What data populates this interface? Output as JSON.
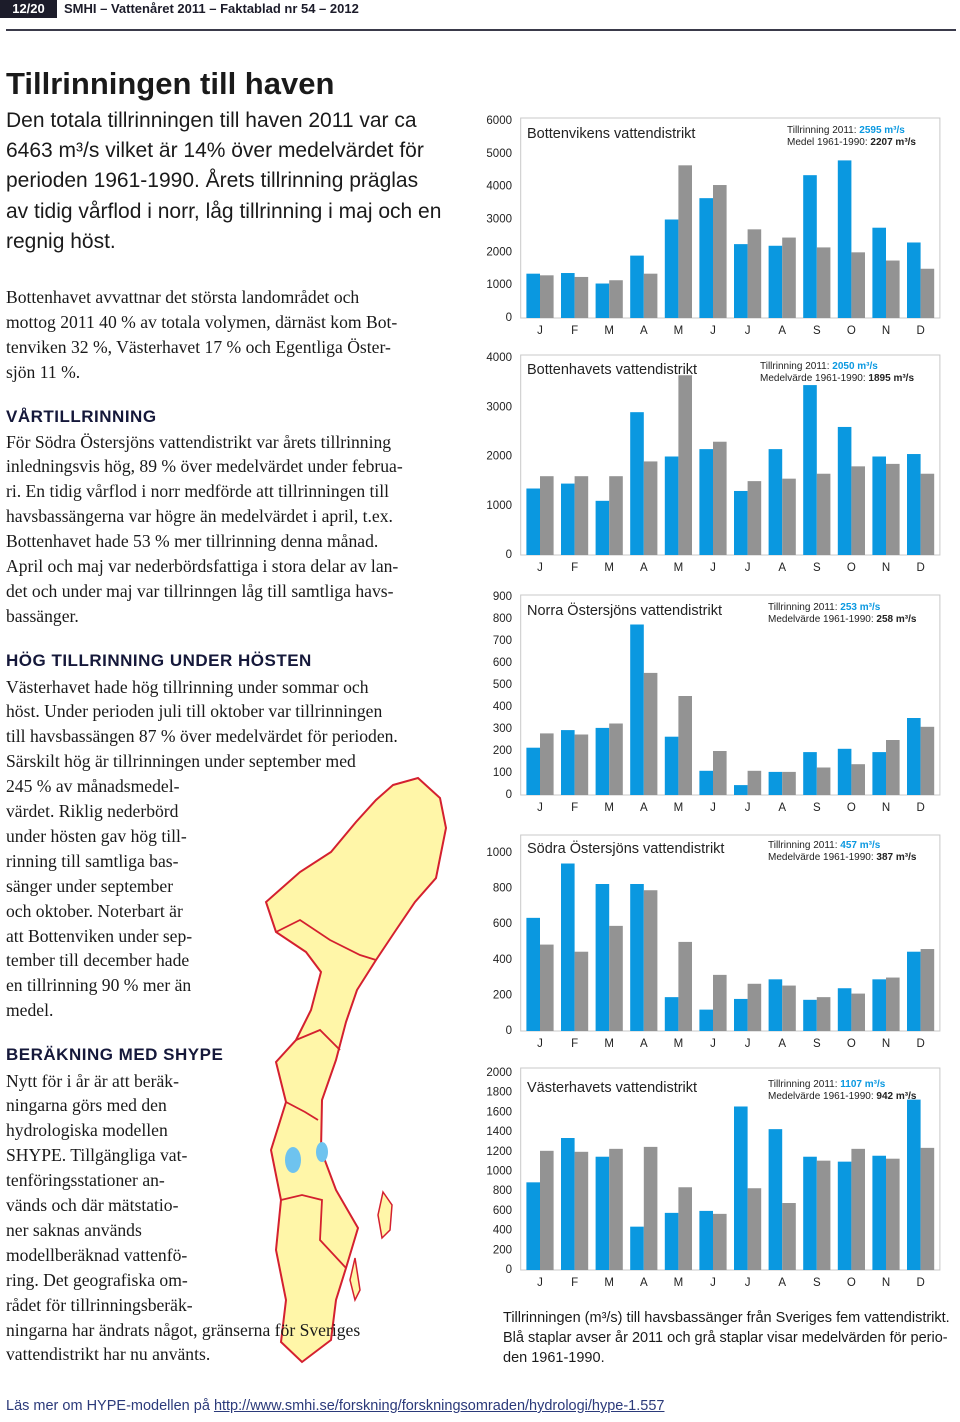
{
  "header": {
    "page": "12/20",
    "publication": "SMHI – Vattenåret 2011 – Faktablad nr 54 – 2012"
  },
  "title": "Tillrinningen till haven",
  "lead": [
    "Den totala tillrinningen till haven 2011 var ca",
    "6463 m³/s vilket är 14% över medelvärdet för",
    "perioden 1961-1990. Årets tillrinning präglas",
    "av tidig vårflod i norr, låg tillrinning i maj och en",
    "regnig höst."
  ],
  "paragraph": [
    "Bottenhavet avvattnar det största landområdet och",
    "mottog 2011 40 % av totala volymen, därnäst kom Bot-",
    "tenviken 32 %, Västerhavet 17 % och Egentliga Öster-",
    "sjön 11 %."
  ],
  "sections": [
    {
      "heading": "VÅRTILLRINNING",
      "lines": [
        "För Södra Östersjöns vattendistrikt var årets tillrinning",
        "inledningsvis hög, 89 % över medelvärdet under februa-",
        "ri. En tidig vårflod i norr medförde att tillrinningen till",
        "havsbassängerna var högre än medelvärdet i april, t.ex.",
        "Bottenhavet hade 53 % mer tillrinning denna månad.",
        "April och maj var nederbördsfattiga i stora delar av lan-",
        "det och under maj var tillrinngen låg till samtliga havs-",
        "bassänger."
      ]
    },
    {
      "heading": "HÖG TILLRINNING UNDER HÖSTEN",
      "lines": [
        "Västerhavet hade hög tillrinning under sommar och",
        "höst. Under perioden juli till oktober var tillrinningen",
        "till havsbassängen 87 % över medelvärdet för perioden.",
        "Särskilt hög är tillrinningen under september med",
        "245 % av månadsmedel-",
        "värdet. Riklig nederbörd",
        "under hösten gav hög till-",
        "rinning till samtliga bas-",
        "sänger under september",
        "och oktober. Noterbart är",
        "att Bottenviken under sep-",
        "tember till december hade",
        "en tillrinning 90 % mer än",
        "medel."
      ]
    },
    {
      "heading": "BERÄKNING MED SHYPE",
      "lines": [
        "Nytt för i år är att beräk-",
        "ningarna görs med den",
        "hydrologiska modellen",
        "SHYPE. Tillgängliga vat-",
        "tenföringsstationer an-",
        "vänds och där mätstatio-",
        "ner saknas används",
        "modellberäknad vattenfö-",
        "ring. Det geografiska om-",
        "rådet för tillrinningsberäk-",
        "ningarna har ändrats något, gränserna för Sveriges",
        "vattendistrikt har nu använts."
      ]
    }
  ],
  "caption": [
    "Tillrinningen (m³/s) till havsbassänger från Sveriges fem vattendistrikt.",
    "Blå staplar avser år 2011 och grå staplar visar medelvärden för perio-",
    "den 1961-1990."
  ],
  "footer": {
    "text": "Läs mer om HYPE-modellen på",
    "link": "http://www.smhi.se/forskning/forskningsomraden/hydrologi/hype-1.557"
  },
  "chart_data": [
    {
      "type": "bar",
      "title": "Bottenvikens vattendistrikt",
      "categories": [
        "J",
        "F",
        "M",
        "A",
        "M",
        "J",
        "J",
        "A",
        "S",
        "O",
        "N",
        "D"
      ],
      "series": [
        {
          "name": "Tillrinning 2011:",
          "color": "#0a98e0",
          "values": [
            1350,
            1370,
            1050,
            1900,
            3000,
            3650,
            2250,
            2200,
            4350,
            4800,
            2750,
            2300
          ]
        },
        {
          "name": "Medel 1961-1990:",
          "color": "#939393",
          "values": [
            1300,
            1250,
            1150,
            1350,
            4650,
            4050,
            2700,
            2450,
            2150,
            2000,
            1750,
            1500
          ]
        }
      ],
      "legend_values": [
        "2595 m³/s",
        "2207 m³/s"
      ],
      "ylim": [
        0,
        6000
      ],
      "yticks": [
        0,
        1000,
        2000,
        3000,
        4000,
        5000,
        6000
      ]
    },
    {
      "type": "bar",
      "title": "Bottenhavets vattendistrikt",
      "categories": [
        "J",
        "F",
        "M",
        "A",
        "M",
        "J",
        "J",
        "A",
        "S",
        "O",
        "N",
        "D"
      ],
      "series": [
        {
          "name": "Tillrinning 2011:",
          "color": "#0a98e0",
          "values": [
            1350,
            1450,
            1100,
            2900,
            2000,
            2150,
            1300,
            2150,
            3450,
            2600,
            2000,
            2050
          ]
        },
        {
          "name": "Medelvärde 1961-1990:",
          "color": "#939393",
          "values": [
            1600,
            1600,
            1600,
            1900,
            3650,
            2300,
            1500,
            1550,
            1650,
            1800,
            1850,
            1650
          ]
        }
      ],
      "legend_values": [
        "2050 m³/s",
        "1895 m³/s"
      ],
      "ylim": [
        0,
        4000
      ],
      "yticks": [
        0,
        1000,
        2000,
        3000,
        4000
      ]
    },
    {
      "type": "bar",
      "title": "Norra Östersjöns vattendistrikt",
      "categories": [
        "J",
        "F",
        "M",
        "A",
        "M",
        "J",
        "J",
        "A",
        "S",
        "O",
        "N",
        "D"
      ],
      "series": [
        {
          "name": "Tillrinning 2011:",
          "color": "#0a98e0",
          "values": [
            215,
            295,
            305,
            775,
            265,
            110,
            45,
            105,
            195,
            210,
            195,
            350
          ]
        },
        {
          "name": "Medelvärde 1961-1990:",
          "color": "#939393",
          "values": [
            280,
            275,
            325,
            555,
            450,
            200,
            110,
            105,
            125,
            140,
            250,
            310
          ]
        }
      ],
      "legend_values": [
        "253 m³/s",
        "258 m³/s"
      ],
      "ylim": [
        0,
        900
      ],
      "yticks": [
        0,
        100,
        200,
        300,
        400,
        500,
        600,
        700,
        800,
        900
      ]
    },
    {
      "type": "bar",
      "title": "Södra Östersjöns vattendistrikt",
      "categories": [
        "J",
        "F",
        "M",
        "A",
        "M",
        "J",
        "J",
        "A",
        "S",
        "O",
        "N",
        "D"
      ],
      "series": [
        {
          "name": "Tillrinning 2011:",
          "color": "#0a98e0",
          "values": [
            635,
            940,
            825,
            825,
            190,
            120,
            180,
            290,
            175,
            240,
            290,
            445
          ]
        },
        {
          "name": "Medelvärde 1961-1990:",
          "color": "#939393",
          "values": [
            485,
            445,
            590,
            790,
            500,
            315,
            265,
            255,
            190,
            210,
            300,
            460
          ]
        }
      ],
      "legend_values": [
        "457 m³/s",
        "387 m³/s"
      ],
      "ylim": [
        0,
        1100
      ],
      "yticks": [
        0,
        200,
        400,
        600,
        800,
        1000
      ]
    },
    {
      "type": "bar",
      "title": "Västerhavets vattendistrikt",
      "categories": [
        "J",
        "F",
        "M",
        "A",
        "M",
        "J",
        "J",
        "A",
        "S",
        "O",
        "N",
        "D"
      ],
      "series": [
        {
          "name": "Tillrinning 2011:",
          "color": "#0a98e0",
          "values": [
            890,
            1340,
            1150,
            440,
            580,
            600,
            1660,
            1430,
            1150,
            1100,
            1160,
            1730
          ]
        },
        {
          "name": "Medelvärde 1961-1990:",
          "color": "#939393",
          "values": [
            1210,
            1200,
            1230,
            1250,
            840,
            570,
            830,
            680,
            1110,
            1230,
            1130,
            1240
          ]
        }
      ],
      "legend_values": [
        "1107 m³/s",
        "942 m³/s"
      ],
      "ylim": [
        0,
        2000
      ],
      "yticks": [
        0,
        200,
        400,
        600,
        800,
        1000,
        1200,
        1400,
        1600,
        1800,
        2000
      ]
    }
  ]
}
